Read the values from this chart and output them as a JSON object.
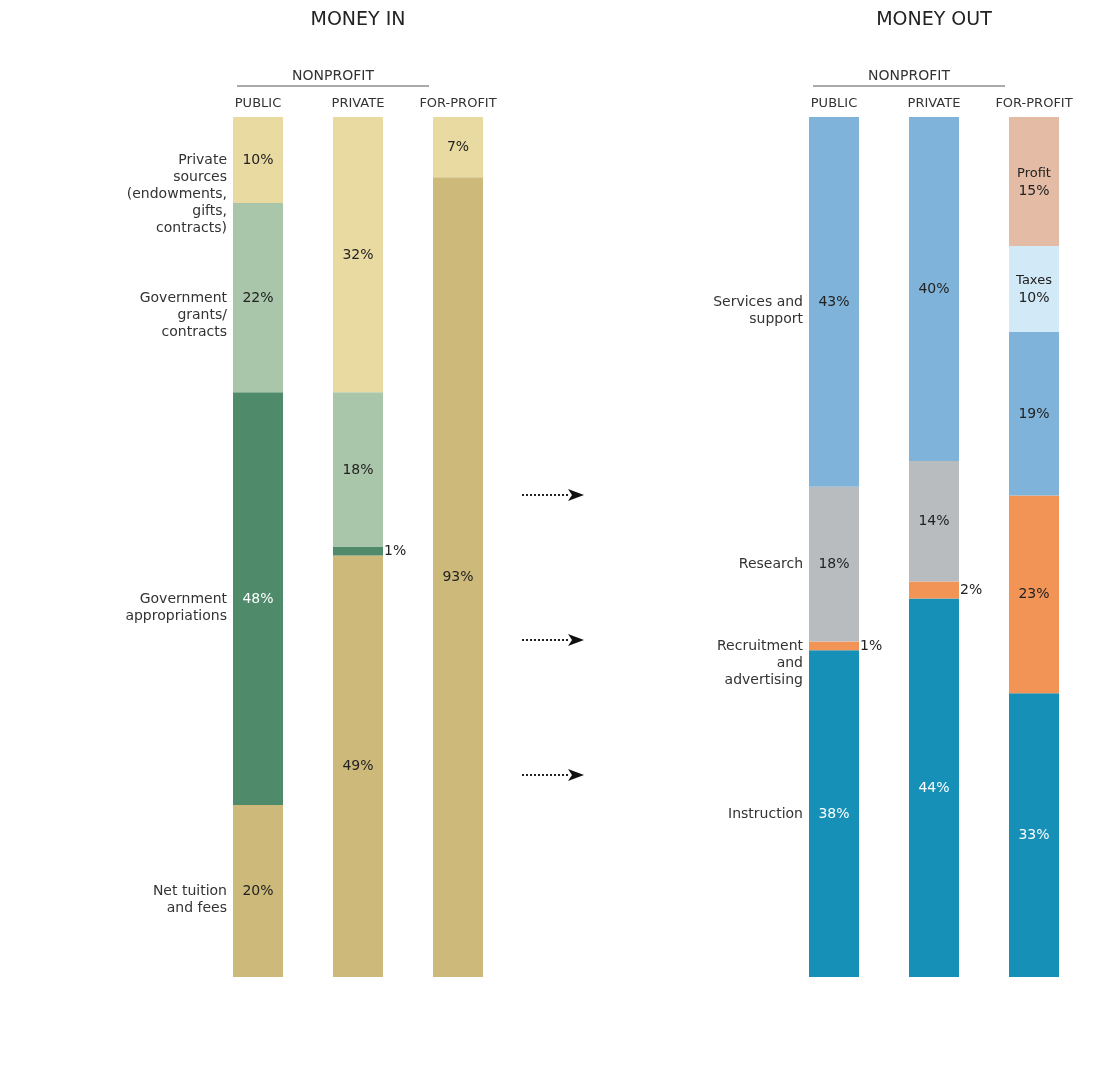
{
  "chart_data": [
    {
      "type": "bar",
      "stacked": true,
      "title": "MONEY IN",
      "categories": [
        "PUBLIC",
        "PRIVATE",
        "FOR-PROFIT"
      ],
      "annotations": [
        "NONPROFIT"
      ],
      "tick_labels": "x",
      "grid": false,
      "legend": false,
      "series": [
        {
          "name": "Net tuition and fees",
          "color": "#cdb97a",
          "values": [
            20,
            49,
            93
          ],
          "value_labels": [
            "20%",
            "49%",
            "93%"
          ]
        },
        {
          "name": "Government appropriations",
          "color": "#4f8a6a",
          "values": [
            48,
            1,
            null
          ],
          "value_labels": [
            "48%",
            "1%",
            null
          ]
        },
        {
          "name": "Government grants/ contracts",
          "color": "#a9c5aa",
          "values": [
            22,
            18,
            null
          ],
          "value_labels": [
            "22%",
            "18%",
            null
          ]
        },
        {
          "name": "Private sources (endowments, gifts, contracts)",
          "color": "#e9daa2",
          "values": [
            10,
            32,
            7
          ],
          "value_labels": [
            "10%",
            "32%",
            "7%"
          ]
        }
      ]
    },
    {
      "type": "bar",
      "stacked": true,
      "title": "MONEY OUT",
      "categories": [
        "PUBLIC",
        "PRIVATE",
        "FOR-PROFIT"
      ],
      "annotations": [
        "NONPROFIT"
      ],
      "tick_labels": "x",
      "grid": false,
      "legend": false,
      "series": [
        {
          "name": "Instruction",
          "color": "#1690b6",
          "values": [
            38,
            44,
            33
          ],
          "value_labels": [
            "38%",
            "44%",
            "33%"
          ]
        },
        {
          "name": "Recruitment and advertising",
          "color": "#f39457",
          "values": [
            1,
            2,
            23
          ],
          "value_labels": [
            "1%",
            "2%",
            "23%"
          ]
        },
        {
          "name": "Research",
          "color": "#b9bcbf",
          "values": [
            18,
            14,
            null
          ],
          "value_labels": [
            "18%",
            "14%",
            null
          ]
        },
        {
          "name": "Services and support",
          "color": "#80b3d9",
          "values": [
            43,
            40,
            19
          ],
          "value_labels": [
            "43%",
            "40%",
            "19%"
          ]
        },
        {
          "name": "Taxes",
          "color": "#d2e9f7",
          "values": [
            null,
            null,
            10
          ],
          "value_labels": [
            null,
            null,
            "10%"
          ]
        },
        {
          "name": "Profit",
          "color": "#e4bba4",
          "values": [
            null,
            null,
            15
          ],
          "value_labels": [
            null,
            null,
            "15%"
          ]
        }
      ]
    }
  ]
}
